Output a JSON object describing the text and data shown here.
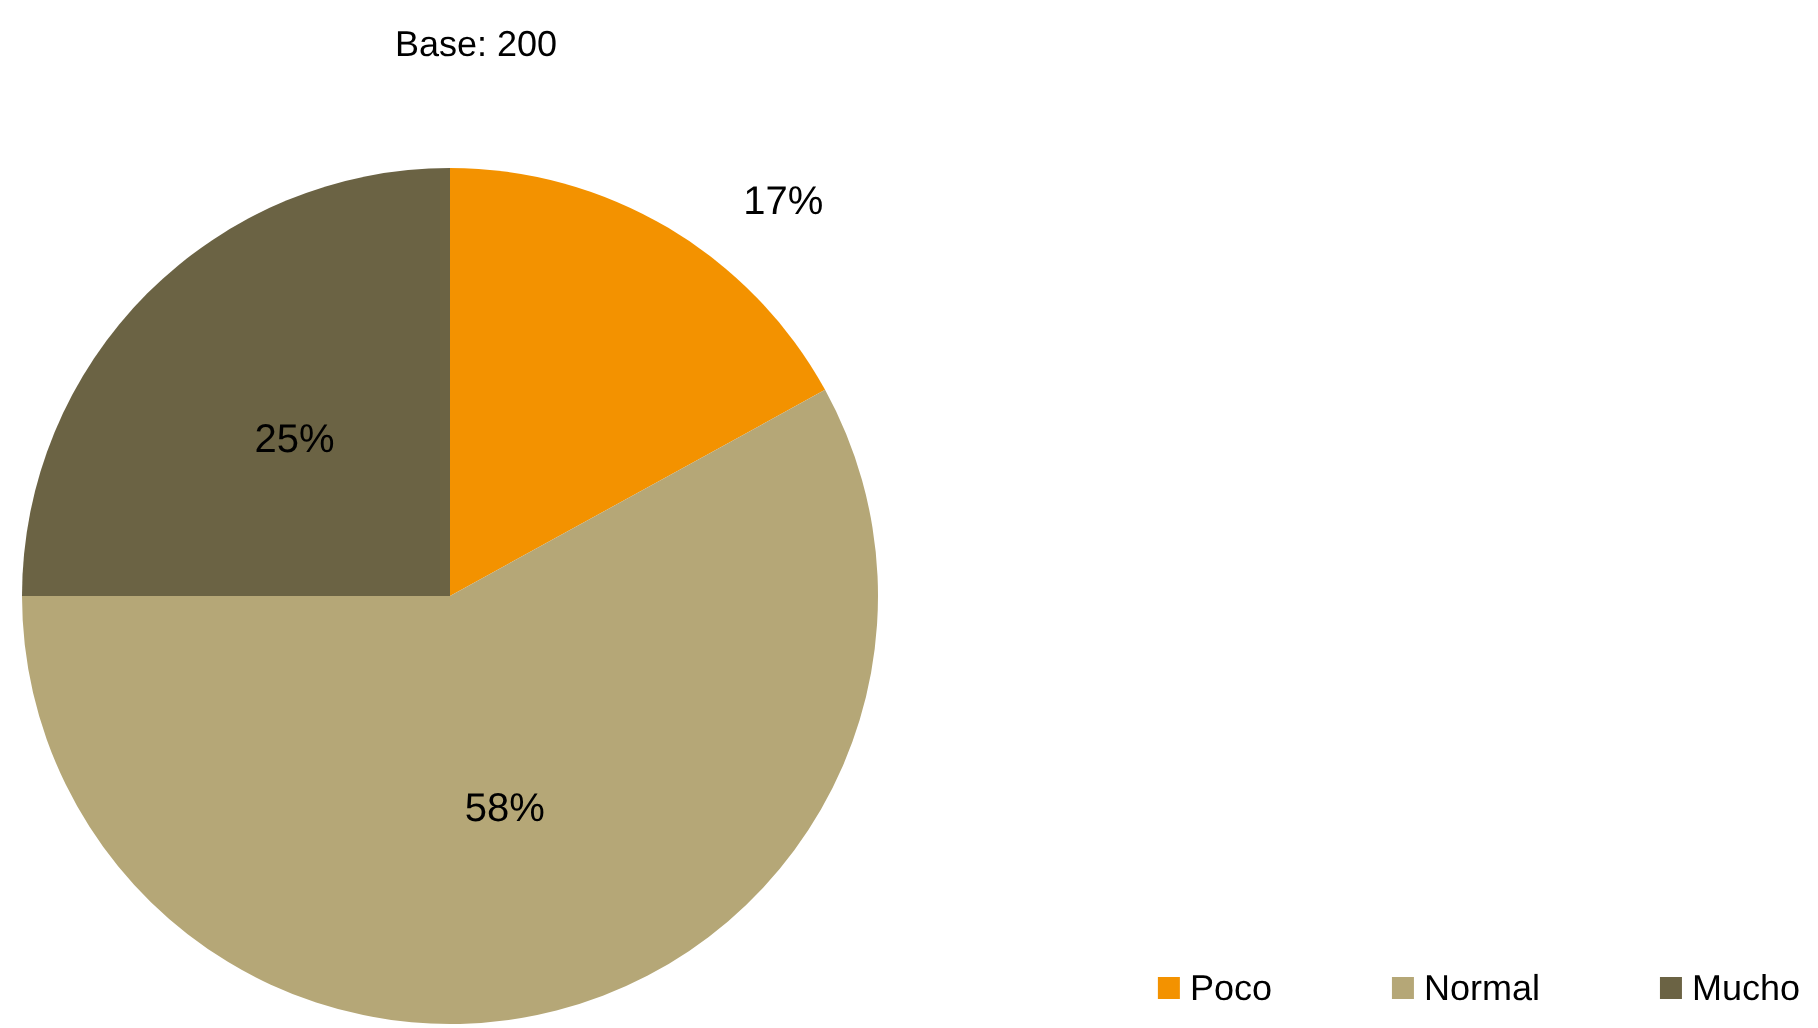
{
  "chart_data": {
    "type": "pie",
    "title": "Base: 200",
    "categories": [
      "Poco",
      "Normal",
      "Mucho"
    ],
    "values": [
      17,
      58,
      25
    ],
    "colors": [
      "#f39200",
      "#b5a777",
      "#6b6344"
    ],
    "value_labels": [
      "17%",
      "58%",
      "25%"
    ],
    "legend": "bottom right"
  }
}
